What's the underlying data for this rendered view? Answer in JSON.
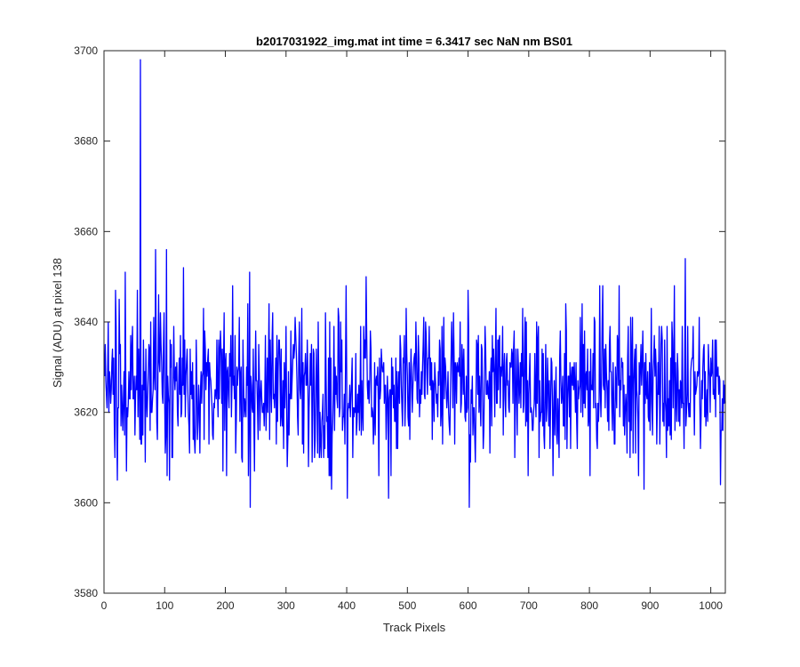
{
  "chart_data": {
    "type": "line",
    "title": "b2017031922_img.mat int time = 6.3417 sec  NaN nm BS01",
    "xlabel": "Track Pixels",
    "ylabel": "Signal (ADU) at pixel 138",
    "xlim": [
      0,
      1024
    ],
    "ylim": [
      3580,
      3700
    ],
    "xticks": [
      0,
      100,
      200,
      300,
      400,
      500,
      600,
      700,
      800,
      900,
      1000
    ],
    "yticks": [
      3580,
      3600,
      3620,
      3640,
      3660,
      3680,
      3700
    ],
    "grid": false,
    "legend": "none",
    "series": [
      {
        "color": "#0000ff",
        "baseline_mean": 3626,
        "noise_spread": 8,
        "x_range": [
          1,
          1024
        ],
        "notable_points": [
          {
            "x": 1,
            "y": 3628
          },
          {
            "x": 15,
            "y": 3624
          },
          {
            "x": 19,
            "y": 3647
          },
          {
            "x": 22,
            "y": 3605
          },
          {
            "x": 25,
            "y": 3645
          },
          {
            "x": 35,
            "y": 3651
          },
          {
            "x": 37,
            "y": 3607
          },
          {
            "x": 55,
            "y": 3647
          },
          {
            "x": 60,
            "y": 3698
          },
          {
            "x": 62,
            "y": 3613
          },
          {
            "x": 85,
            "y": 3656
          },
          {
            "x": 103,
            "y": 3656
          },
          {
            "x": 108,
            "y": 3605
          },
          {
            "x": 131,
            "y": 3652
          },
          {
            "x": 150,
            "y": 3611
          },
          {
            "x": 240,
            "y": 3651
          },
          {
            "x": 241,
            "y": 3599
          },
          {
            "x": 375,
            "y": 3603
          },
          {
            "x": 401,
            "y": 3601
          },
          {
            "x": 432,
            "y": 3650
          },
          {
            "x": 469,
            "y": 3601
          },
          {
            "x": 602,
            "y": 3599
          },
          {
            "x": 890,
            "y": 3603
          },
          {
            "x": 958,
            "y": 3654
          },
          {
            "x": 1016,
            "y": 3604
          },
          {
            "x": 1024,
            "y": 3622
          }
        ]
      }
    ]
  }
}
